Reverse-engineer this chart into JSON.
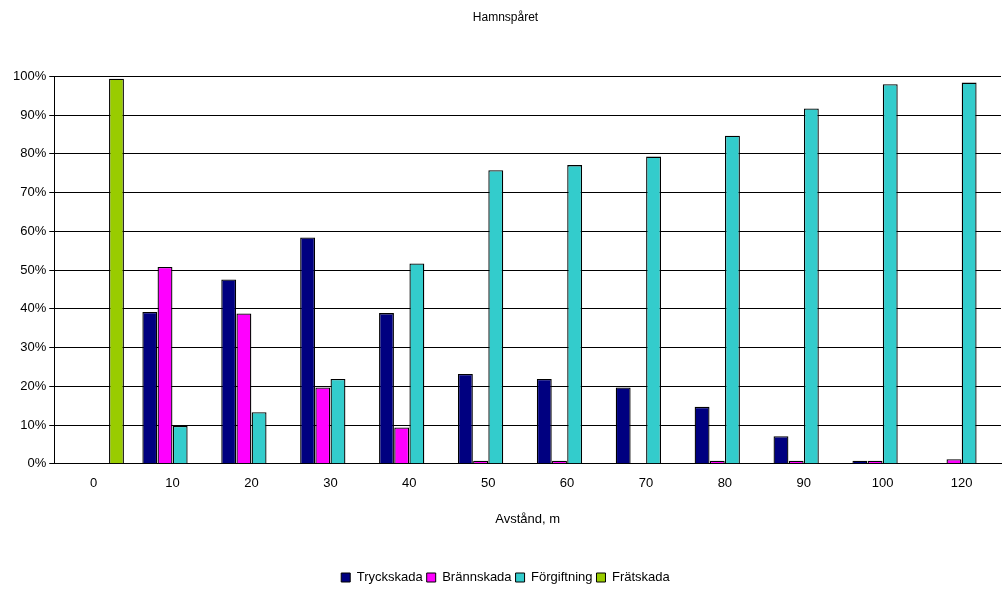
{
  "chart_data": {
    "type": "bar",
    "title": "Hamnspåret",
    "xlabel": "Avstånd, m",
    "categories": [
      "0",
      "10",
      "20",
      "30",
      "40",
      "50",
      "60",
      "70",
      "80",
      "90",
      "100",
      "120"
    ],
    "series": [
      {
        "name": "Tryckskada",
        "color": "#000080",
        "values": [
          null,
          39.2,
          47.6,
          58.4,
          38.9,
          23.2,
          21.9,
          19.7,
          14.7,
          7.1,
          0.8,
          null
        ]
      },
      {
        "name": "Brännskada",
        "color": "#ff00ff",
        "values": [
          null,
          50.8,
          38.8,
          19.7,
          9.4,
          0.8,
          0.8,
          null,
          0.8,
          0.8,
          0.8,
          1.2
        ]
      },
      {
        "name": "Förgiftning",
        "color": "#33cccc",
        "values": [
          null,
          9.8,
          13.3,
          21.9,
          51.7,
          75.8,
          77.1,
          79.3,
          84.7,
          91.7,
          98.0,
          98.4
        ]
      },
      {
        "name": "Frätskada",
        "color": "#99cc00",
        "values": [
          99.4,
          null,
          null,
          null,
          null,
          null,
          null,
          null,
          null,
          null,
          null,
          null
        ]
      }
    ],
    "ylim": [
      0,
      100
    ],
    "yticks": [
      {
        "value": 0,
        "label": "0%"
      },
      {
        "value": 10,
        "label": "10%"
      },
      {
        "value": 20,
        "label": "20%"
      },
      {
        "value": 30,
        "label": "30%"
      },
      {
        "value": 40,
        "label": "40%"
      },
      {
        "value": 50,
        "label": "50%"
      },
      {
        "value": 60,
        "label": "60%"
      },
      {
        "value": 70,
        "label": "70%"
      },
      {
        "value": 80,
        "label": "80%"
      },
      {
        "value": 90,
        "label": "90%"
      },
      {
        "value": 100,
        "label": "100%"
      }
    ],
    "grid": "y",
    "legend": "bottom"
  }
}
